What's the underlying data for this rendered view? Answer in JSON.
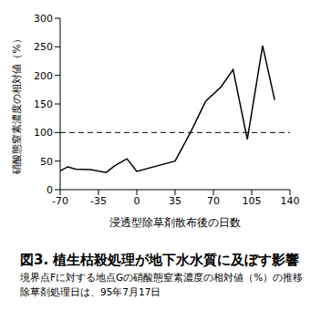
{
  "chart_data": {
    "type": "line",
    "title": "図3. 植生枯殺処理が地下水水質に及ぼす影響",
    "subtitle": "境界点Fに対する地点Gの硝酸態窒素濃度の相対値（%）の推移",
    "annotation": "除草剤処理日は、95年7月17日",
    "x_label": "浸透型除草剤散布後の日数",
    "y_label": "硝酸態窒素濃度の相対値（%）",
    "x": [
      -70,
      -63,
      -56,
      -42,
      -28,
      -20,
      -9,
      0,
      35,
      49,
      63,
      77,
      88,
      101,
      115,
      126
    ],
    "series": [
      {
        "name": "地点G",
        "color": "#000000",
        "values": [
          33,
          40,
          36,
          35,
          30,
          42,
          54,
          32,
          50,
          100,
          155,
          180,
          210,
          88,
          252,
          157
        ]
      }
    ],
    "xlim": [
      -70,
      140
    ],
    "xticks": [
      -70,
      -35,
      0,
      35,
      70,
      105,
      140
    ],
    "ylim": [
      0,
      300
    ],
    "yticks": [
      0,
      50,
      100,
      150,
      200,
      250,
      300
    ],
    "reference_line": 100,
    "grid": false,
    "marker": "none",
    "line_style": "solid"
  }
}
